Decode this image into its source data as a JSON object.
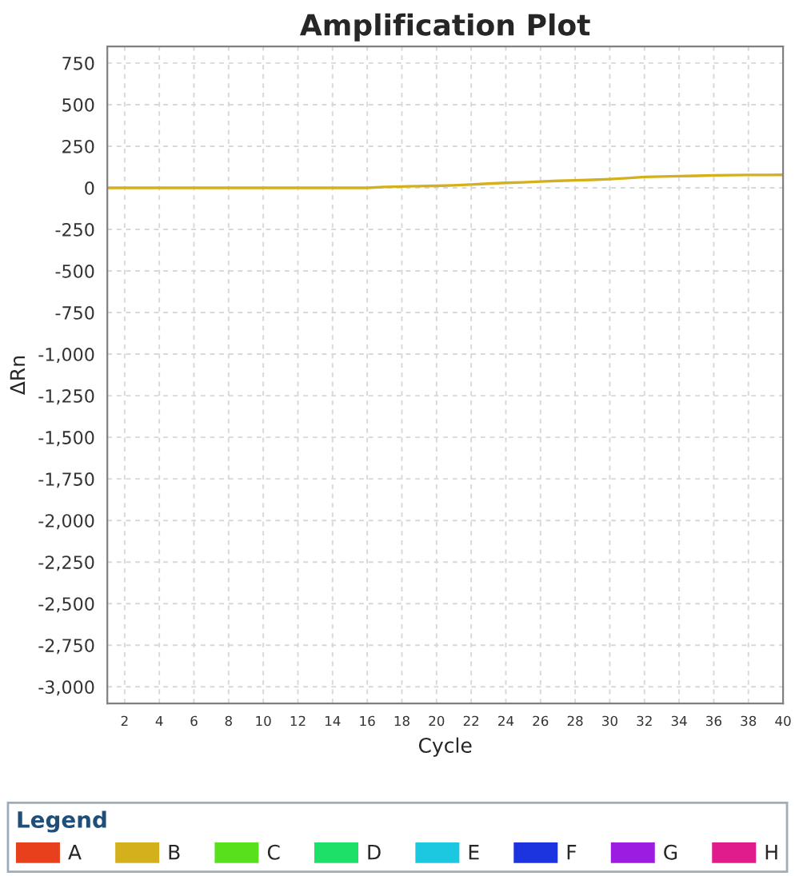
{
  "chart_data": {
    "type": "line",
    "title": "Amplification Plot",
    "xlabel": "Cycle",
    "ylabel": "ΔRn",
    "legend_title": "Legend",
    "x": [
      1,
      2,
      3,
      4,
      5,
      6,
      7,
      8,
      9,
      10,
      11,
      12,
      13,
      14,
      15,
      16,
      17,
      18,
      19,
      20,
      21,
      22,
      23,
      24,
      25,
      26,
      27,
      28,
      29,
      30,
      31,
      32,
      33,
      34,
      35,
      36,
      37,
      38,
      39,
      40
    ],
    "series": [
      {
        "name": "A",
        "color": "#e8401c",
        "values": [
          null,
          null,
          null,
          null,
          null,
          null,
          null,
          null,
          null,
          null,
          null,
          null,
          null,
          null,
          null,
          null,
          null,
          null,
          null,
          null,
          null,
          null,
          null,
          null,
          null,
          null,
          null,
          null,
          null,
          null,
          null,
          null,
          null,
          null,
          null,
          null,
          null,
          null,
          null,
          null
        ]
      },
      {
        "name": "B",
        "color": "#d4b01c",
        "values": [
          0,
          0,
          0,
          0,
          0,
          0,
          0,
          0,
          0,
          0,
          0,
          0,
          0,
          0,
          0,
          0,
          5,
          8,
          10,
          12,
          15,
          20,
          25,
          30,
          33,
          38,
          42,
          45,
          48,
          52,
          58,
          65,
          68,
          70,
          72,
          75,
          76,
          77,
          77,
          78
        ]
      },
      {
        "name": "C",
        "color": "#58e01c",
        "values": [
          null,
          null,
          null,
          null,
          null,
          null,
          null,
          null,
          null,
          null,
          null,
          null,
          null,
          null,
          null,
          null,
          null,
          null,
          null,
          null,
          null,
          null,
          null,
          null,
          null,
          null,
          null,
          null,
          null,
          null,
          null,
          null,
          null,
          null,
          null,
          null,
          null,
          null,
          null,
          null
        ]
      },
      {
        "name": "D",
        "color": "#1ce068",
        "values": [
          null,
          null,
          null,
          null,
          null,
          null,
          null,
          null,
          null,
          null,
          null,
          null,
          null,
          null,
          null,
          null,
          null,
          null,
          null,
          null,
          null,
          null,
          null,
          null,
          null,
          null,
          null,
          null,
          null,
          null,
          null,
          null,
          null,
          null,
          null,
          null,
          null,
          null,
          null,
          null
        ]
      },
      {
        "name": "E",
        "color": "#1cc8e0",
        "values": [
          null,
          null,
          null,
          null,
          null,
          null,
          null,
          null,
          null,
          null,
          null,
          null,
          null,
          null,
          null,
          null,
          null,
          null,
          null,
          null,
          null,
          null,
          null,
          null,
          null,
          null,
          null,
          null,
          null,
          null,
          null,
          null,
          null,
          null,
          null,
          null,
          null,
          null,
          null,
          null
        ]
      },
      {
        "name": "F",
        "color": "#1c34e0",
        "values": [
          null,
          null,
          null,
          null,
          null,
          null,
          null,
          null,
          null,
          null,
          null,
          null,
          null,
          null,
          null,
          null,
          null,
          null,
          null,
          null,
          null,
          null,
          null,
          null,
          null,
          null,
          null,
          null,
          null,
          null,
          null,
          null,
          null,
          null,
          null,
          null,
          null,
          null,
          null,
          null
        ]
      },
      {
        "name": "G",
        "color": "#9c1ce0",
        "values": [
          null,
          null,
          null,
          null,
          null,
          null,
          null,
          null,
          null,
          null,
          null,
          null,
          null,
          null,
          null,
          null,
          null,
          null,
          null,
          null,
          null,
          null,
          null,
          null,
          null,
          null,
          null,
          null,
          null,
          null,
          null,
          null,
          null,
          null,
          null,
          null,
          null,
          null,
          null,
          null
        ]
      },
      {
        "name": "H",
        "color": "#e01c8c",
        "values": [
          null,
          null,
          null,
          null,
          null,
          null,
          null,
          null,
          null,
          null,
          null,
          null,
          null,
          null,
          null,
          null,
          null,
          null,
          null,
          null,
          null,
          null,
          null,
          null,
          null,
          null,
          null,
          null,
          null,
          null,
          null,
          null,
          null,
          null,
          null,
          null,
          null,
          null,
          null,
          null
        ]
      }
    ],
    "xlim": [
      1,
      40
    ],
    "xticks": [
      2,
      4,
      6,
      8,
      10,
      12,
      14,
      16,
      18,
      20,
      22,
      24,
      26,
      28,
      30,
      32,
      34,
      36,
      38,
      40
    ],
    "ylim": [
      -3100,
      850
    ],
    "yticks": [
      750,
      500,
      250,
      0,
      -250,
      -500,
      -750,
      {
        "value": -1000,
        "label": "-1,000"
      },
      {
        "value": -1250,
        "label": "-1,250"
      },
      {
        "value": -1500,
        "label": "-1,500"
      },
      {
        "value": -1750,
        "label": "-1,750"
      },
      {
        "value": -2000,
        "label": "-2,000"
      },
      {
        "value": -2250,
        "label": "-2,250"
      },
      {
        "value": -2500,
        "label": "-2,500"
      },
      {
        "value": -2750,
        "label": "-2,750"
      },
      {
        "value": -3000,
        "label": "-3,000"
      }
    ],
    "grid": true,
    "legend": "bottom",
    "marker": "none",
    "line_style": "solid"
  }
}
